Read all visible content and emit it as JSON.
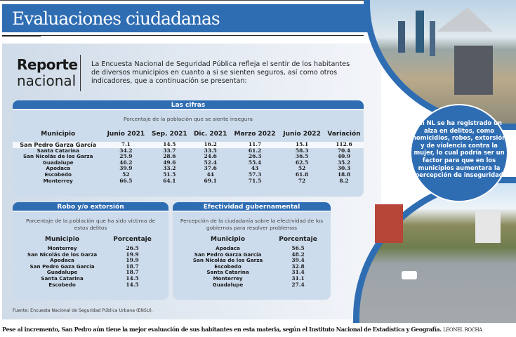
{
  "header": {
    "title": "Evaluaciones ciudadanas"
  },
  "intro": {
    "label_bold": "Reporte",
    "label_light": "nacional",
    "text": "La Encuesta Nacional de Seguridad Pública refleja el sentir de los habitantes de diversos municipios en cuanto a si se sienten seguros, así como otros indicadores, que a continuación se presentan:"
  },
  "cifras": {
    "title": "Las cifras",
    "subtitle": "Porcentaje de la población que se siente insegura",
    "columns": [
      "Municipio",
      "Junio 2021",
      "Sep. 2021",
      "Dic. 2021",
      "Marzo 2022",
      "Junio 2022",
      "Variación"
    ],
    "rows": [
      [
        "San Pedro Garza García",
        "7.1",
        "14.5",
        "16.2",
        "11.7",
        "15.1",
        "112.6"
      ],
      [
        "Santa Catarina",
        "34.2",
        "33.7",
        "33.5",
        "61.2",
        "58.3",
        "70.4"
      ],
      [
        "San Nicolás de los Garza",
        "25.9",
        "28.6",
        "24.6",
        "26.3",
        "36.5",
        "40.9"
      ],
      [
        "Guadalupe",
        "46.2",
        "49.6",
        "52.4",
        "55.4",
        "62.5",
        "35.2"
      ],
      [
        "Apodaca",
        "39.9",
        "33.2",
        "37.6",
        "43",
        "52",
        "30.3"
      ],
      [
        "Escobedo",
        "52",
        "51.5",
        "44",
        "57.3",
        "61.8",
        "18.8"
      ],
      [
        "Monterrey",
        "66.5",
        "64.1",
        "69.1",
        "71.5",
        "72",
        "8.2"
      ]
    ]
  },
  "robo": {
    "title": "Robo  y/o extorsión",
    "subtitle": "Porcentaje de la población que ha sido víctima de estos delitos",
    "columns": [
      "Municipio",
      "Porcentaje"
    ],
    "rows": [
      [
        "Monterrey",
        "26.5"
      ],
      [
        "San Nicolás de los Garza",
        "19.9"
      ],
      [
        "Apodaca",
        "19.9"
      ],
      [
        "San Pedro Gaza García",
        "18.7"
      ],
      [
        "Guadalupe",
        "18.7"
      ],
      [
        "Santa Catarina",
        "14.5"
      ],
      [
        "Escobedo",
        "14.5"
      ]
    ]
  },
  "efectividad": {
    "title": "Efectividad gubernamental",
    "subtitle": "Percepción de la ciudadanía sobre la efectividad de los gobiernos para resolver problemas",
    "columns": [
      "Municipio",
      "Porcentaje"
    ],
    "rows": [
      [
        "Apodaca",
        "56.5"
      ],
      [
        "San Pedro Garza García",
        "48.2"
      ],
      [
        "San Nicolás de los Garza",
        "39.4"
      ],
      [
        "Escobedo",
        "32.8"
      ],
      [
        "Santa Catarina",
        "31.4"
      ],
      [
        "Monterrey",
        "31.1"
      ],
      [
        "Guadalupe",
        "27.4"
      ]
    ]
  },
  "source": "Fuente: Encuesta Nacional de Seguridad Pública Urbana (ENSU).",
  "callout": "En NL se ha registrado un alza en delitos, como homicidios, robos, extorsión y de violencia contra la mujer, lo cual podría ser un factor para que en los municipios aumentara la percepción de inseguridad",
  "caption": {
    "text": "Pese al incremento, San Pedro aún tiene la mejor evaluación de sus habitantes en esta materia, según el Instituto Nacional de Estadística y Geografía.",
    "credit": "LEONEL ROCHA"
  },
  "colors": {
    "brand_blue": "#2f6db3",
    "panel": "#cddcec"
  }
}
